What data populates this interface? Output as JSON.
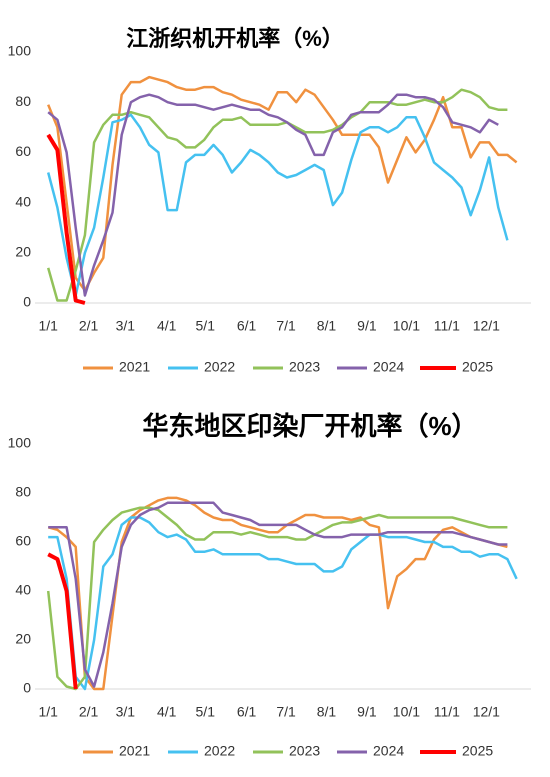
{
  "chart_data": [
    {
      "type": "line",
      "title": "江浙织机开机率（%）",
      "x": [
        1,
        2,
        3,
        4,
        5,
        6,
        7,
        8,
        9,
        10,
        11,
        12,
        13,
        14,
        15,
        16,
        17,
        18,
        19,
        20,
        21,
        22,
        23,
        24,
        25,
        26,
        27,
        28,
        29,
        30,
        31,
        32,
        33,
        34,
        35,
        36,
        37,
        38,
        39,
        40,
        41,
        42,
        43,
        44,
        45,
        46,
        47,
        48,
        49,
        50,
        51,
        52
      ],
      "xlim": [
        0,
        54
      ],
      "xticks": [
        {
          "value": 1,
          "label": "1/1"
        },
        {
          "value": 5.4,
          "label": "2/1"
        },
        {
          "value": 9.4,
          "label": "3/1"
        },
        {
          "value": 13.9,
          "label": "4/1"
        },
        {
          "value": 18.1,
          "label": "5/1"
        },
        {
          "value": 22.6,
          "label": "6/1"
        },
        {
          "value": 26.9,
          "label": "7/1"
        },
        {
          "value": 31.3,
          "label": "8/1"
        },
        {
          "value": 35.7,
          "label": "9/1"
        },
        {
          "value": 40,
          "label": "10/1"
        },
        {
          "value": 44.4,
          "label": "11/1"
        },
        {
          "value": 48.7,
          "label": "12/1"
        }
      ],
      "ylim": [
        0,
        100
      ],
      "yticks": [
        0,
        20,
        40,
        60,
        80,
        100
      ],
      "legend": "bottom",
      "series": [
        {
          "name": "2021",
          "color": "#f0913f",
          "values": [
            79,
            70,
            40,
            10,
            5,
            12,
            18,
            55,
            83,
            88,
            88,
            90,
            89,
            88,
            86,
            85,
            85,
            86,
            86,
            84,
            83,
            81,
            80,
            79,
            77,
            84,
            84,
            80,
            85,
            83,
            78,
            73,
            67,
            67,
            67,
            67,
            62,
            48,
            57,
            66,
            60,
            65,
            73,
            82,
            70,
            70,
            58,
            64,
            64,
            59,
            59,
            56
          ]
        },
        {
          "name": "2022",
          "color": "#45c1f0",
          "values": [
            52,
            38,
            18,
            3,
            20,
            30,
            50,
            72,
            73,
            75,
            70,
            63,
            60,
            37,
            37,
            56,
            59,
            59,
            63,
            59,
            52,
            56,
            61,
            59,
            56,
            52,
            50,
            51,
            53,
            55,
            53,
            39,
            44,
            57,
            68,
            70,
            70,
            68,
            70,
            74,
            74,
            66,
            56,
            53,
            50,
            46,
            35,
            45,
            58,
            38,
            25,
            null
          ]
        },
        {
          "name": "2023",
          "color": "#92c25a",
          "values": [
            14,
            1,
            1,
            13,
            27,
            64,
            71,
            75,
            75,
            76,
            75,
            74,
            70,
            66,
            65,
            62,
            62,
            65,
            70,
            73,
            73,
            74,
            71,
            71,
            71,
            71,
            72,
            70,
            68,
            68,
            68,
            69,
            71,
            74,
            76,
            80,
            80,
            80,
            79,
            79,
            80,
            81,
            80,
            80,
            82,
            85,
            84,
            82,
            78,
            77,
            77,
            null
          ]
        },
        {
          "name": "2024",
          "color": "#8462ab",
          "values": [
            76,
            73,
            60,
            30,
            3,
            15,
            25,
            36,
            67,
            80,
            82,
            83,
            82,
            80,
            79,
            79,
            79,
            78,
            77,
            78,
            79,
            78,
            77,
            77,
            75,
            74,
            72,
            69,
            67,
            59,
            59,
            68,
            70,
            75,
            76,
            76,
            76,
            79,
            83,
            83,
            82,
            82,
            81,
            78,
            72,
            71,
            70,
            68,
            73,
            71,
            null,
            null
          ]
        },
        {
          "name": "2025",
          "color": "#ff0000",
          "values": [
            67,
            61,
            28,
            1,
            0,
            null,
            null,
            null,
            null,
            null,
            null,
            null,
            null,
            null,
            null,
            null,
            null,
            null,
            null,
            null,
            null,
            null,
            null,
            null,
            null,
            null,
            null,
            null,
            null,
            null,
            null,
            null,
            null,
            null,
            null,
            null,
            null,
            null,
            null,
            null,
            null,
            null,
            null,
            null,
            null,
            null,
            null,
            null,
            null,
            null,
            null,
            null
          ]
        }
      ]
    },
    {
      "type": "line",
      "title": "华东地区印染厂开机率（%）",
      "x": [
        1,
        2,
        3,
        4,
        5,
        6,
        7,
        8,
        9,
        10,
        11,
        12,
        13,
        14,
        15,
        16,
        17,
        18,
        19,
        20,
        21,
        22,
        23,
        24,
        25,
        26,
        27,
        28,
        29,
        30,
        31,
        32,
        33,
        34,
        35,
        36,
        37,
        38,
        39,
        40,
        41,
        42,
        43,
        44,
        45,
        46,
        47,
        48,
        49,
        50,
        51,
        52
      ],
      "xlim": [
        0,
        54
      ],
      "xticks": [
        {
          "value": 1,
          "label": "1/1"
        },
        {
          "value": 5.4,
          "label": "2/1"
        },
        {
          "value": 9.4,
          "label": "3/1"
        },
        {
          "value": 13.9,
          "label": "4/1"
        },
        {
          "value": 18.1,
          "label": "5/1"
        },
        {
          "value": 22.6,
          "label": "6/1"
        },
        {
          "value": 26.9,
          "label": "7/1"
        },
        {
          "value": 31.3,
          "label": "8/1"
        },
        {
          "value": 35.7,
          "label": "9/1"
        },
        {
          "value": 40,
          "label": "10/1"
        },
        {
          "value": 44.4,
          "label": "11/1"
        },
        {
          "value": 48.7,
          "label": "12/1"
        }
      ],
      "ylim": [
        0,
        100
      ],
      "yticks": [
        0,
        20,
        40,
        60,
        80,
        100
      ],
      "legend": "bottom",
      "series": [
        {
          "name": "2021",
          "color": "#f0913f",
          "values": [
            66,
            65,
            62,
            58,
            5,
            0,
            0,
            30,
            60,
            70,
            73,
            75,
            77,
            78,
            78,
            77,
            75,
            72,
            70,
            69,
            69,
            67,
            66,
            65,
            64,
            64,
            67,
            69,
            71,
            71,
            70,
            70,
            70,
            69,
            70,
            67,
            66,
            33,
            46,
            49,
            53,
            53,
            61,
            65,
            66,
            64,
            62,
            61,
            60,
            59,
            58,
            null
          ]
        },
        {
          "name": "2022",
          "color": "#45c1f0",
          "values": [
            62,
            62,
            45,
            5,
            0,
            20,
            50,
            55,
            67,
            70,
            70,
            68,
            64,
            62,
            63,
            61,
            56,
            56,
            57,
            55,
            55,
            55,
            55,
            55,
            53,
            53,
            52,
            51,
            51,
            51,
            48,
            48,
            50,
            57,
            60,
            63,
            63,
            62,
            62,
            62,
            61,
            60,
            60,
            58,
            58,
            56,
            56,
            54,
            55,
            55,
            53,
            45
          ]
        },
        {
          "name": "2023",
          "color": "#92c25a",
          "values": [
            40,
            5,
            1,
            0,
            5,
            60,
            65,
            69,
            72,
            73,
            74,
            74,
            73,
            70,
            67,
            63,
            61,
            61,
            64,
            64,
            64,
            63,
            64,
            63,
            62,
            62,
            62,
            61,
            61,
            63,
            65,
            67,
            68,
            68,
            69,
            70,
            71,
            70,
            70,
            70,
            70,
            70,
            70,
            70,
            70,
            69,
            68,
            67,
            66,
            66,
            66,
            null
          ]
        },
        {
          "name": "2024",
          "color": "#8462ab",
          "values": [
            66,
            66,
            66,
            45,
            8,
            1,
            15,
            35,
            58,
            67,
            71,
            73,
            74,
            76,
            76,
            76,
            76,
            76,
            76,
            72,
            71,
            70,
            69,
            67,
            67,
            67,
            67,
            67,
            65,
            63,
            62,
            62,
            62,
            63,
            63,
            63,
            63,
            64,
            64,
            64,
            64,
            64,
            64,
            64,
            64,
            63,
            62,
            61,
            60,
            59,
            59,
            null
          ]
        },
        {
          "name": "2025",
          "color": "#ff0000",
          "values": [
            55,
            53,
            40,
            0,
            null,
            null,
            null,
            null,
            null,
            null,
            null,
            null,
            null,
            null,
            null,
            null,
            null,
            null,
            null,
            null,
            null,
            null,
            null,
            null,
            null,
            null,
            null,
            null,
            null,
            null,
            null,
            null,
            null,
            null,
            null,
            null,
            null,
            null,
            null,
            null,
            null,
            null,
            null,
            null,
            null,
            null,
            null,
            null,
            null,
            null,
            null,
            null
          ]
        }
      ]
    }
  ]
}
